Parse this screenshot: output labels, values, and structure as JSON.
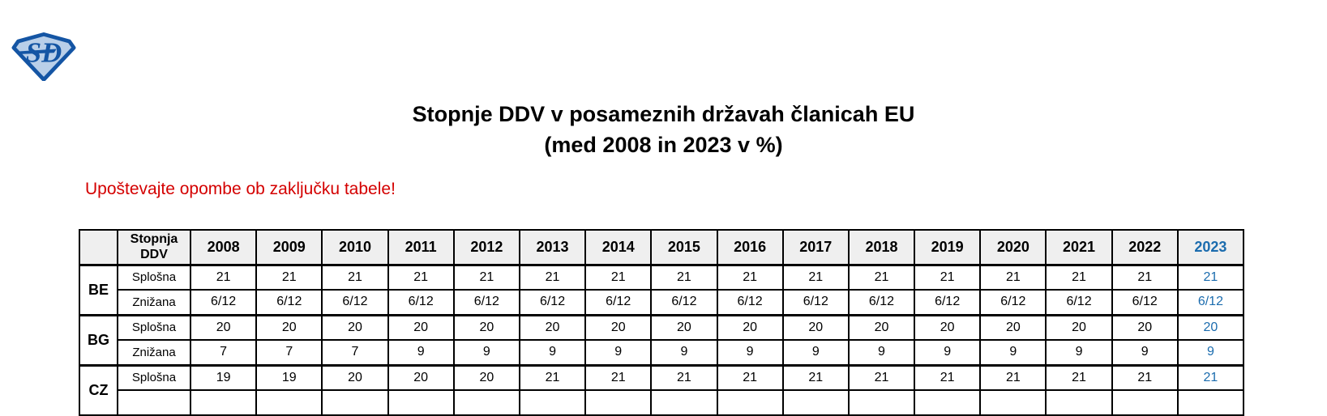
{
  "logo": {
    "text": "SD"
  },
  "title": {
    "line1": "Stopnje DDV v posameznih državah članicah EU",
    "line2": "(med 2008 in 2023 v %)"
  },
  "note": "Upoštevajte opombe ob zaključku tabele!",
  "colors": {
    "accent_blue": "#1b6cae",
    "note_red": "#d40000",
    "table_header_bg": "#efefef",
    "logo_blue": "#1455a4"
  },
  "table": {
    "corner_label": "",
    "rate_header": "Stopnja DDV",
    "years": [
      "2008",
      "2009",
      "2010",
      "2011",
      "2012",
      "2013",
      "2014",
      "2015",
      "2016",
      "2017",
      "2018",
      "2019",
      "2020",
      "2021",
      "2022",
      "2023"
    ],
    "highlight_year": "2023",
    "groups": [
      {
        "country": "BE",
        "rates": [
          {
            "type": "Splošna",
            "values": [
              "21",
              "21",
              "21",
              "21",
              "21",
              "21",
              "21",
              "21",
              "21",
              "21",
              "21",
              "21",
              "21",
              "21",
              "21",
              "21"
            ]
          },
          {
            "type": "Znižana",
            "values": [
              "6/12",
              "6/12",
              "6/12",
              "6/12",
              "6/12",
              "6/12",
              "6/12",
              "6/12",
              "6/12",
              "6/12",
              "6/12",
              "6/12",
              "6/12",
              "6/12",
              "6/12",
              "6/12"
            ]
          }
        ]
      },
      {
        "country": "BG",
        "rates": [
          {
            "type": "Splošna",
            "values": [
              "20",
              "20",
              "20",
              "20",
              "20",
              "20",
              "20",
              "20",
              "20",
              "20",
              "20",
              "20",
              "20",
              "20",
              "20",
              "20"
            ]
          },
          {
            "type": "Znižana",
            "values": [
              "7",
              "7",
              "7",
              "9",
              "9",
              "9",
              "9",
              "9",
              "9",
              "9",
              "9",
              "9",
              "9",
              "9",
              "9",
              "9"
            ]
          }
        ]
      },
      {
        "country": "CZ",
        "rates": [
          {
            "type": "Splošna",
            "values": [
              "19",
              "19",
              "20",
              "20",
              "20",
              "21",
              "21",
              "21",
              "21",
              "21",
              "21",
              "21",
              "21",
              "21",
              "21",
              "21"
            ]
          },
          {
            "type": "",
            "values": []
          }
        ]
      }
    ]
  }
}
